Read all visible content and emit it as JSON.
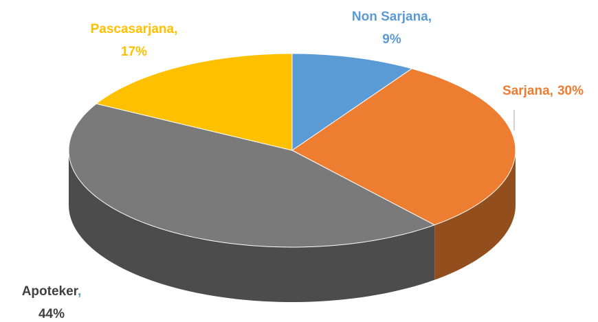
{
  "chart_data": {
    "type": "pie",
    "categories": [
      "Non Sarjana",
      "Sarjana",
      "Apoteker",
      "Pascasarjana"
    ],
    "values": [
      9,
      30,
      44,
      17
    ],
    "value_labels": [
      "9%",
      "30%",
      "44%",
      "17%"
    ],
    "label_separator": ",",
    "colors": [
      "#5b9bd5",
      "#ed7d31",
      "#7a7a7a",
      "#ffc000"
    ]
  }
}
